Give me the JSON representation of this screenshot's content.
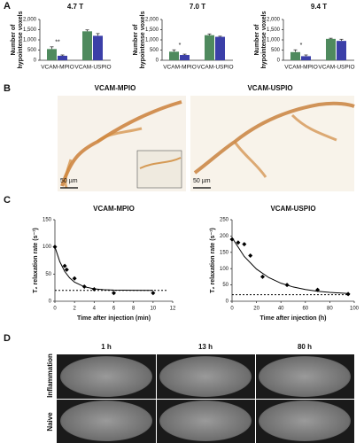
{
  "panel_labels": [
    "A",
    "B",
    "C",
    "D"
  ],
  "chart_data": [
    {
      "type": "bar",
      "title": "4.7 T",
      "ylabel": [
        "Number of",
        "hypointense voxels"
      ],
      "categories": [
        "VCAM-MPIO",
        "VCAM-USPIO"
      ],
      "series": [
        {
          "color": "#4f8a5e",
          "values": [
            550,
            1420
          ],
          "errors": [
            110,
            70
          ]
        },
        {
          "color": "#3b3fa8",
          "values": [
            220,
            1200
          ],
          "errors": [
            40,
            110
          ]
        }
      ],
      "ylim": [
        0,
        2000
      ],
      "yticks": [
        0,
        500,
        {
          "value": 1000,
          "label": "1,000"
        },
        {
          "value": 1500,
          "label": "1,500"
        },
        {
          "value": 2000,
          "label": "2,000"
        }
      ],
      "significance": "**"
    },
    {
      "type": "bar",
      "title": "7.0 T",
      "ylabel": [
        "Number of",
        "hypointense voxels"
      ],
      "categories": [
        "VCAM-MPIO",
        "VCAM-USPIO"
      ],
      "series": [
        {
          "color": "#4f8a5e",
          "values": [
            420,
            1230
          ],
          "errors": [
            90,
            60
          ]
        },
        {
          "color": "#3b3fa8",
          "values": [
            260,
            1150
          ],
          "errors": [
            40,
            30
          ]
        }
      ],
      "ylim": [
        0,
        2000
      ],
      "yticks": [
        0,
        500,
        {
          "value": 1000,
          "label": "1,000"
        },
        {
          "value": 1500,
          "label": "1,500"
        },
        {
          "value": 2000,
          "label": "2,000"
        }
      ],
      "significance": "*"
    },
    {
      "type": "bar",
      "title": "9.4 T",
      "ylabel": [
        "Number of",
        "hypointense voxels"
      ],
      "categories": [
        "VCAM-MPIO",
        "VCAM-USPIO"
      ],
      "series": [
        {
          "color": "#4f8a5e",
          "values": [
            400,
            1050
          ],
          "errors": [
            110,
            30
          ]
        },
        {
          "color": "#3b3fa8",
          "values": [
            200,
            950
          ],
          "errors": [
            60,
            80
          ]
        }
      ],
      "ylim": [
        0,
        2000
      ],
      "yticks": [
        0,
        500,
        {
          "value": 1000,
          "label": "1,000"
        },
        {
          "value": 1500,
          "label": "1,500"
        },
        {
          "value": 2000,
          "label": "2,000"
        }
      ],
      "significance": "*"
    },
    {
      "type": "scatter",
      "title": "VCAM-MPIO",
      "xlabel": "Time after injection (min)",
      "ylabel": "T₂ relaxation rate (s⁻¹)",
      "color": "#000000",
      "x": [
        0,
        1,
        1.2,
        2,
        3,
        4,
        6,
        10
      ],
      "values": [
        100,
        65,
        58,
        42,
        27,
        22,
        15,
        15
      ],
      "fit": {
        "x": [
          0,
          0.5,
          1,
          1.5,
          2,
          3,
          4,
          5,
          6,
          8,
          10
        ],
        "values": [
          100,
          72.7,
          54.8,
          42.9,
          35.1,
          26.6,
          22.9,
          21.2,
          20.5,
          20.1,
          20
        ]
      },
      "reference_line": 20,
      "xlim": [
        0,
        12
      ],
      "xticks": [
        0,
        2,
        4,
        6,
        8,
        10,
        12
      ],
      "ylim": [
        0,
        150
      ],
      "yticks": [
        0,
        50,
        100,
        150
      ]
    },
    {
      "type": "scatter",
      "title": "VCAM-USPIO",
      "xlabel": "Time after injection (h)",
      "ylabel": "T₂ relaxation rate (s⁻¹)",
      "color": "#000000",
      "x": [
        0,
        5,
        10,
        15,
        25,
        45,
        70,
        95
      ],
      "values": [
        190,
        180,
        175,
        140,
        75,
        50,
        35,
        22
      ],
      "fit": {
        "x": [
          0,
          10,
          20,
          30,
          40,
          50,
          60,
          70,
          80,
          95
        ],
        "values": [
          195,
          137.3,
          98.6,
          72.7,
          55.3,
          43.7,
          35.9,
          30.6,
          27.1,
          23.9
        ]
      },
      "reference_line": 20,
      "xlim": [
        0,
        100
      ],
      "xticks": [
        0,
        20,
        40,
        60,
        80,
        100
      ],
      "ylim": [
        0,
        250
      ],
      "yticks": [
        0,
        50,
        100,
        150,
        200,
        250
      ]
    }
  ],
  "micrographs": {
    "titles": [
      "VCAM-MPIO",
      "VCAM-USPIO"
    ],
    "scale_bars": [
      "50 µm",
      "50 µm"
    ]
  },
  "mri": {
    "columns": [
      "1 h",
      "13 h",
      "80 h"
    ],
    "rows": [
      "Inflammation",
      "Naive"
    ]
  }
}
